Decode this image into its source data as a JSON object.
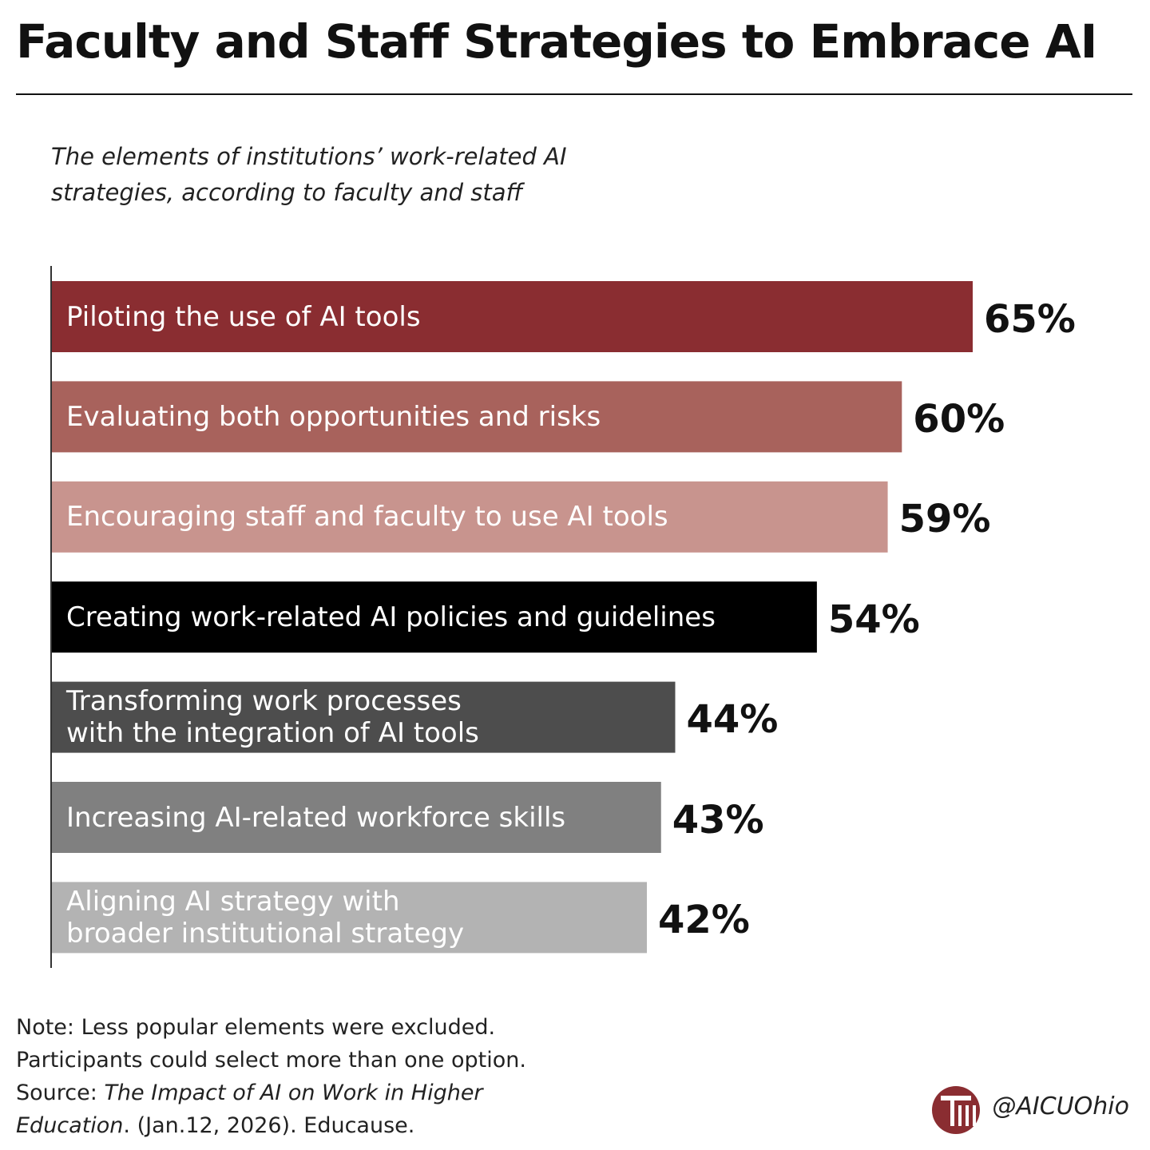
{
  "chart_data": {
    "type": "bar",
    "orientation": "horizontal",
    "title": "Faculty and Staff Strategies to Embrace AI",
    "subtitle": "The elements of institutions’ work-related AI\nstrategies, according to faculty and staff",
    "categories": [
      "Piloting the use of AI tools",
      "Evaluating both opportunities and risks",
      "Encouraging staff and faculty to use AI tools",
      "Creating work-related AI policies and guidelines",
      "Transforming work processes\nwith the integration of AI tools",
      "Increasing AI-related workforce skills",
      "Aligning AI strategy with\nbroader institutional strategy"
    ],
    "values": [
      65,
      60,
      59,
      54,
      44,
      43,
      42
    ],
    "value_labels": [
      "65%",
      "60%",
      "59%",
      "54%",
      "44%",
      "43%",
      "42%"
    ],
    "colors": [
      "#8a2d31",
      "#a8625c",
      "#c8948e",
      "#000000",
      "#4d4d4d",
      "#808080",
      "#b3b3b3"
    ],
    "notes": [
      "Note: Less popular elements were excluded.",
      "Participants could select more than one option."
    ],
    "source": {
      "prefix": "Source:",
      "title": "The Impact of AI on Work in Higher Education",
      "suffix": ". (Jan.12, 2026). Educause."
    },
    "credit": "@AICUOhio"
  }
}
